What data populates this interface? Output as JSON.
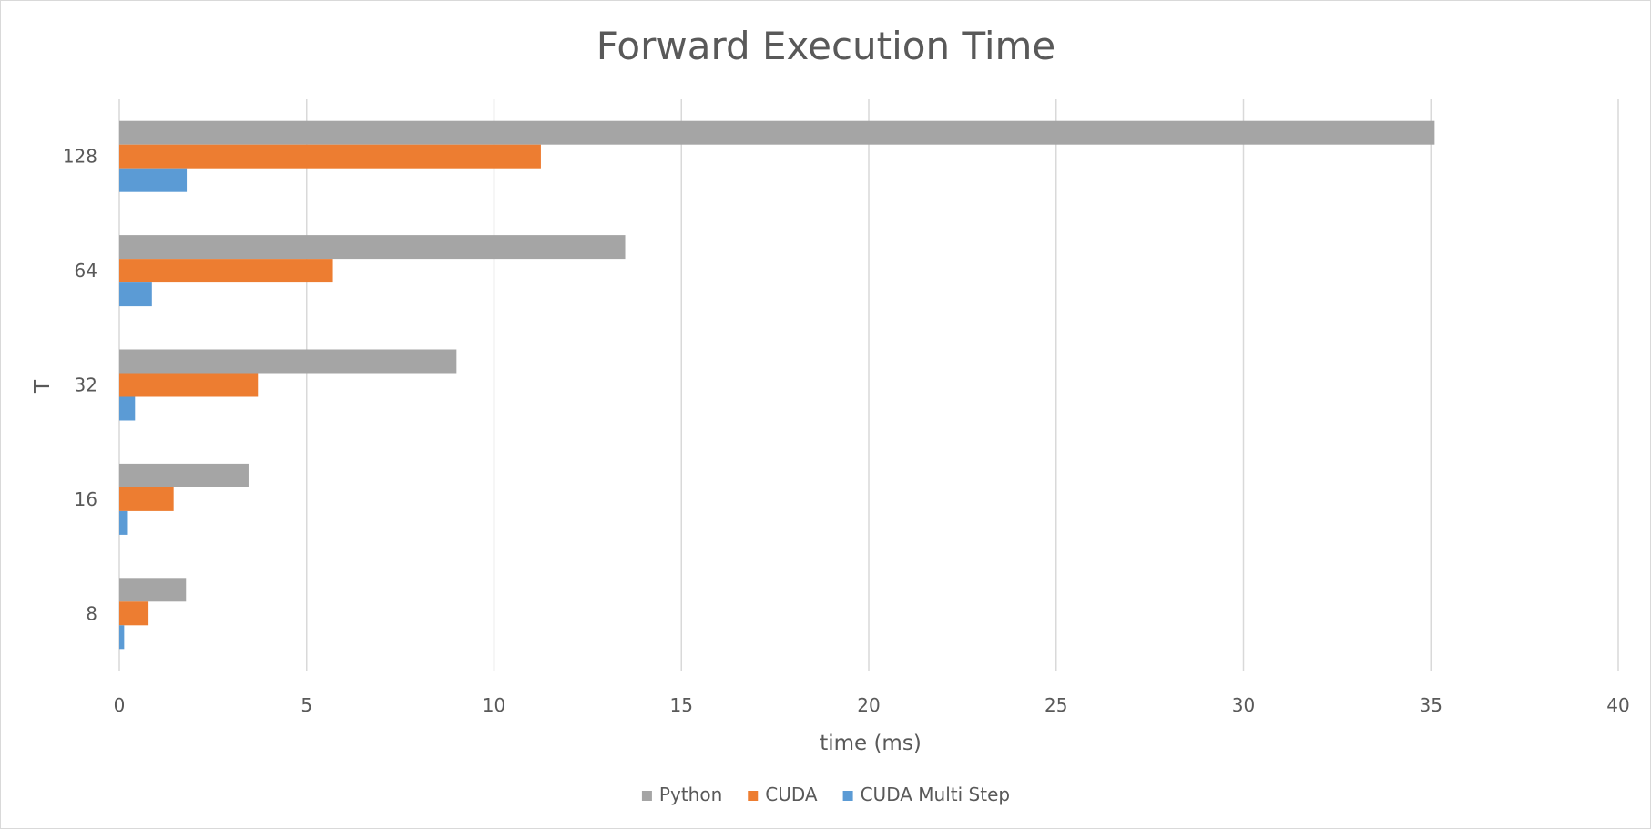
{
  "chart_data": {
    "type": "bar",
    "orientation": "horizontal",
    "title": "Forward Execution Time",
    "xlabel": "time (ms)",
    "ylabel": "T",
    "categories": [
      "8",
      "16",
      "32",
      "64",
      "128"
    ],
    "xlim": [
      0,
      40
    ],
    "x_ticks": [
      0,
      5,
      10,
      15,
      20,
      25,
      30,
      35,
      40
    ],
    "grid": "vertical major gridlines",
    "legend_position": "bottom",
    "series": [
      {
        "name": "Python",
        "color": "#a5a5a5",
        "values": [
          1.78,
          3.45,
          9.0,
          13.5,
          35.1
        ]
      },
      {
        "name": "CUDA",
        "color": "#ed7d31",
        "values": [
          0.78,
          1.45,
          3.7,
          5.7,
          11.25
        ]
      },
      {
        "name": "CUDA Multi Step",
        "color": "#5b9bd5",
        "values": [
          0.13,
          0.23,
          0.42,
          0.87,
          1.8
        ]
      }
    ]
  }
}
